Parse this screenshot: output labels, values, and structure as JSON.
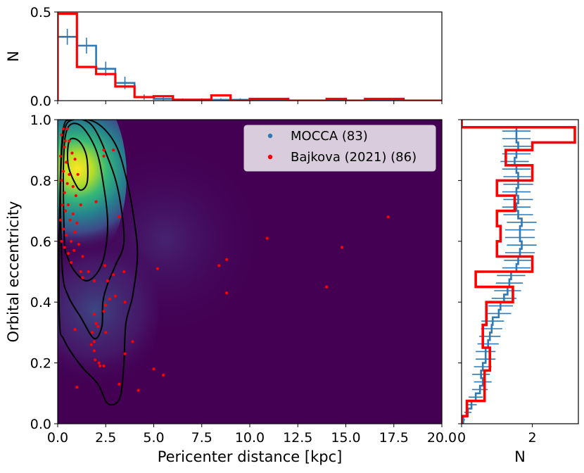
{
  "colors": {
    "mocca": "#2f7ab5",
    "bajkova": "#ff0000",
    "background": "#440154",
    "contour": "#000000"
  },
  "chart_data": [
    {
      "id": "top-histogram",
      "type": "step-histogram",
      "xlim": [
        0,
        20
      ],
      "ylim": [
        0,
        0.5
      ],
      "ylabel": "N",
      "yticks": [
        0.0,
        0.5
      ],
      "ytick_labels": [
        "0.0",
        "0.5"
      ],
      "bin_edges": [
        0,
        1,
        2,
        3,
        4,
        5,
        6,
        7,
        8,
        9,
        10,
        11,
        12,
        13,
        14,
        15,
        16,
        17,
        18,
        19
      ],
      "series": [
        {
          "name": "MOCCA",
          "values": [
            0.36,
            0.31,
            0.18,
            0.1,
            0.02,
            0.01,
            0.005,
            0.005,
            0.005,
            0.005,
            0,
            0,
            0,
            0,
            0.005,
            0,
            0,
            0,
            0
          ],
          "errors": [
            0.045,
            0.045,
            0.04,
            0.035,
            0.015,
            0.01,
            0.008,
            0.008,
            0.008,
            0.008,
            0,
            0,
            0,
            0,
            0.01,
            0,
            0,
            0,
            0
          ]
        },
        {
          "name": "Bajkova (2021)",
          "values": [
            0.49,
            0.19,
            0.15,
            0.08,
            0.02,
            0.025,
            0.005,
            0.005,
            0.03,
            0,
            0.01,
            0.01,
            0,
            0,
            0.01,
            0,
            0.01,
            0.01,
            0
          ]
        }
      ]
    },
    {
      "id": "main-scatter",
      "type": "scatter",
      "xlabel": "Pericenter distance [kpc]",
      "ylabel": "Orbital eccentricity",
      "xlim": [
        0,
        20
      ],
      "ylim": [
        0,
        1
      ],
      "xticks": [
        0,
        2.5,
        5,
        7.5,
        10,
        12.5,
        15,
        17.5,
        20
      ],
      "xtick_labels": [
        "0.0",
        "2.5",
        "5.0",
        "7.5",
        "10.0",
        "12.5",
        "15.0",
        "17.5",
        "20.0"
      ],
      "yticks": [
        0,
        0.2,
        0.4,
        0.6,
        0.8,
        1.0
      ],
      "ytick_labels": [
        "0.0",
        "0.2",
        "0.4",
        "0.6",
        "0.8",
        "1.0"
      ],
      "legend": {
        "position": "top-right",
        "entries": [
          {
            "label": "MOCCA (83)",
            "color": "#2f7ab5"
          },
          {
            "label": "Bajkova (2021) (86)",
            "color": "#ff0000"
          }
        ]
      },
      "density_peak": {
        "x": 1.0,
        "y": 0.83
      },
      "contours": [
        [
          [
            1.0,
            0.78
          ],
          [
            0.55,
            0.85
          ],
          [
            0.6,
            0.93
          ],
          [
            1.1,
            0.93
          ],
          [
            1.5,
            0.88
          ],
          [
            1.55,
            0.8
          ],
          [
            1.3,
            0.77
          ],
          [
            1.0,
            0.78
          ]
        ],
        [
          [
            0.35,
            0.6
          ],
          [
            0.3,
            0.85
          ],
          [
            0.5,
            0.97
          ],
          [
            1.2,
            0.98
          ],
          [
            2.0,
            0.9
          ],
          [
            2.4,
            0.78
          ],
          [
            2.6,
            0.66
          ],
          [
            2.45,
            0.56
          ],
          [
            2.1,
            0.5
          ],
          [
            1.5,
            0.47
          ],
          [
            0.9,
            0.5
          ],
          [
            0.5,
            0.55
          ],
          [
            0.35,
            0.6
          ]
        ],
        [
          [
            0.25,
            0.5
          ],
          [
            0.15,
            0.75
          ],
          [
            0.3,
            0.95
          ],
          [
            0.8,
            1.0
          ],
          [
            1.8,
            0.98
          ],
          [
            2.7,
            0.86
          ],
          [
            3.2,
            0.75
          ],
          [
            3.45,
            0.6
          ],
          [
            3.0,
            0.52
          ],
          [
            2.6,
            0.46
          ],
          [
            2.35,
            0.4
          ],
          [
            2.3,
            0.32
          ],
          [
            1.9,
            0.28
          ],
          [
            1.2,
            0.35
          ],
          [
            0.55,
            0.42
          ],
          [
            0.25,
            0.5
          ]
        ],
        [
          [
            0.1,
            0.33
          ],
          [
            0.08,
            0.6
          ],
          [
            0.25,
            0.95
          ],
          [
            0.8,
            1.0
          ],
          [
            2.0,
            0.99
          ],
          [
            3.0,
            0.92
          ],
          [
            3.6,
            0.8
          ],
          [
            4.0,
            0.66
          ],
          [
            4.15,
            0.55
          ],
          [
            3.9,
            0.42
          ],
          [
            3.55,
            0.33
          ],
          [
            3.45,
            0.2
          ],
          [
            3.3,
            0.1
          ],
          [
            3.0,
            0.065
          ],
          [
            2.55,
            0.07
          ],
          [
            2.1,
            0.13
          ],
          [
            1.35,
            0.18
          ],
          [
            0.75,
            0.23
          ],
          [
            0.3,
            0.28
          ],
          [
            0.1,
            0.33
          ]
        ]
      ],
      "bajkova_points": [
        [
          0.3,
          0.97
        ],
        [
          0.5,
          0.97
        ],
        [
          0.2,
          0.95
        ],
        [
          0.4,
          0.93
        ],
        [
          0.6,
          0.93
        ],
        [
          0.35,
          0.91
        ],
        [
          0.75,
          0.89
        ],
        [
          0.15,
          0.88
        ],
        [
          0.45,
          0.86
        ],
        [
          0.9,
          0.87
        ],
        [
          0.3,
          0.83
        ],
        [
          0.6,
          0.82
        ],
        [
          1.05,
          0.82
        ],
        [
          0.2,
          0.8
        ],
        [
          0.5,
          0.79
        ],
        [
          0.8,
          0.78
        ],
        [
          0.35,
          0.76
        ],
        [
          0.95,
          0.75
        ],
        [
          0.25,
          0.72
        ],
        [
          0.55,
          0.72
        ],
        [
          1.2,
          0.72
        ],
        [
          0.4,
          0.7
        ],
        [
          0.8,
          0.69
        ],
        [
          0.15,
          0.67
        ],
        [
          0.65,
          0.67
        ],
        [
          1.0,
          0.66
        ],
        [
          0.3,
          0.64
        ],
        [
          0.9,
          0.63
        ],
        [
          0.45,
          0.62
        ],
        [
          0.2,
          0.6
        ],
        [
          0.7,
          0.6
        ],
        [
          1.1,
          0.59
        ],
        [
          0.35,
          0.58
        ],
        [
          0.85,
          0.57
        ],
        [
          0.55,
          0.56
        ],
        [
          1.3,
          0.55
        ],
        [
          0.7,
          0.53
        ],
        [
          2.0,
          0.73
        ],
        [
          2.4,
          0.9
        ],
        [
          2.9,
          0.9
        ],
        [
          2.4,
          0.88
        ],
        [
          3.2,
          0.68
        ],
        [
          1.6,
          0.5
        ],
        [
          1.3,
          0.48
        ],
        [
          1.9,
          0.47
        ],
        [
          2.45,
          0.52
        ],
        [
          3.45,
          0.5
        ],
        [
          2.9,
          0.49
        ],
        [
          2.6,
          0.47
        ],
        [
          3.0,
          0.42
        ],
        [
          2.7,
          0.41
        ],
        [
          2.5,
          0.39
        ],
        [
          3.5,
          0.4
        ],
        [
          2.4,
          0.37
        ],
        [
          1.9,
          0.36
        ],
        [
          2.0,
          0.33
        ],
        [
          2.1,
          0.32
        ],
        [
          2.5,
          0.3
        ],
        [
          1.8,
          0.3
        ],
        [
          1.9,
          0.27
        ],
        [
          3.9,
          0.27
        ],
        [
          1.75,
          0.26
        ],
        [
          1.9,
          0.24
        ],
        [
          3.5,
          0.23
        ],
        [
          1.95,
          0.21
        ],
        [
          2.15,
          0.2
        ],
        [
          2.2,
          0.19
        ],
        [
          2.4,
          0.19
        ],
        [
          5.0,
          0.18
        ],
        [
          5.5,
          0.16
        ],
        [
          3.2,
          0.13
        ],
        [
          4.2,
          0.11
        ],
        [
          1.0,
          0.12
        ],
        [
          0.9,
          0.31
        ],
        [
          1.2,
          0.5
        ],
        [
          5.2,
          0.51
        ],
        [
          8.4,
          0.52
        ],
        [
          8.8,
          0.54
        ],
        [
          8.8,
          0.43
        ],
        [
          10.9,
          0.61
        ],
        [
          14.8,
          0.58
        ],
        [
          14.0,
          0.45
        ],
        [
          17.2,
          0.68
        ]
      ]
    },
    {
      "id": "right-histogram",
      "type": "step-histogram",
      "orientation": "horizontal",
      "xlim": [
        0,
        3.3
      ],
      "ylim": [
        0,
        1
      ],
      "xlabel": "N",
      "xticks": [
        0,
        2
      ],
      "xtick_labels": [
        "0",
        "2"
      ],
      "bin_edges": [
        0,
        0.025,
        0.05,
        0.075,
        0.1,
        0.125,
        0.15,
        0.175,
        0.2,
        0.225,
        0.25,
        0.275,
        0.3,
        0.325,
        0.35,
        0.375,
        0.4,
        0.425,
        0.45,
        0.475,
        0.5,
        0.525,
        0.55,
        0.575,
        0.6,
        0.625,
        0.65,
        0.675,
        0.7,
        0.725,
        0.75,
        0.775,
        0.8,
        0.825,
        0.85,
        0.875,
        0.9,
        0.925,
        0.95,
        0.975,
        1.0
      ],
      "series": [
        {
          "name": "MOCCA",
          "values": [
            0.05,
            0.18,
            0.28,
            0.4,
            0.52,
            0.6,
            0.55,
            0.6,
            0.68,
            0.68,
            0.75,
            0.8,
            0.85,
            0.88,
            1.05,
            1.1,
            1.2,
            1.3,
            1.35,
            1.4,
            1.55,
            1.6,
            1.65,
            1.7,
            1.65,
            1.65,
            1.7,
            1.6,
            1.55,
            1.6,
            1.55,
            1.6,
            1.6,
            1.55,
            1.5,
            1.55,
            1.6,
            1.55,
            1.55,
            0
          ],
          "errors": [
            0.05,
            0.1,
            0.15,
            0.2,
            0.22,
            0.25,
            0.25,
            0.25,
            0.28,
            0.28,
            0.3,
            0.3,
            0.3,
            0.32,
            0.35,
            0.35,
            0.35,
            0.38,
            0.38,
            0.4,
            0.4,
            0.4,
            0.42,
            0.42,
            0.42,
            0.42,
            0.42,
            0.42,
            0.4,
            0.42,
            0.4,
            0.42,
            0.42,
            0.4,
            0.4,
            0.4,
            0.42,
            0.4,
            0.4,
            0
          ]
        },
        {
          "name": "Bajkova (2021)",
          "values": [
            0,
            0.15,
            0.15,
            0.65,
            0.65,
            0.65,
            0.65,
            0.8,
            0.8,
            0.8,
            0.6,
            0.6,
            0.6,
            0.7,
            0.7,
            0.7,
            1.45,
            1.45,
            0.4,
            0.4,
            2.0,
            2.0,
            1.0,
            1.0,
            1.1,
            1.1,
            1.0,
            1.0,
            1.5,
            1.5,
            1.0,
            1.0,
            2.0,
            2.0,
            1.25,
            1.25,
            2.0,
            3.2,
            3.2,
            0
          ]
        }
      ]
    }
  ]
}
